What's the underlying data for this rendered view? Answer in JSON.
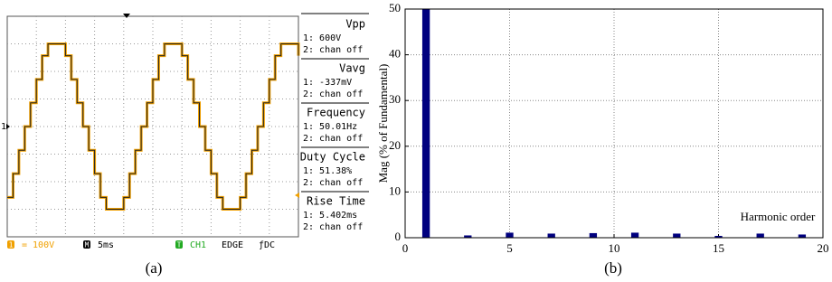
{
  "chart_data": [
    {
      "type": "line",
      "caption": "(a)",
      "step": true,
      "color": "#f0a000",
      "grid": true,
      "channel_marker": "1",
      "x": [
        0,
        1,
        2,
        3,
        4,
        5,
        6,
        7,
        8,
        9,
        10,
        11,
        12,
        13,
        14,
        15,
        16,
        17,
        18,
        19,
        20,
        21,
        22,
        23,
        24,
        25,
        26,
        27,
        28,
        29,
        30,
        31,
        32,
        33,
        34,
        35,
        36,
        37,
        38,
        39,
        40,
        41,
        42,
        43,
        44,
        45,
        46,
        47,
        48,
        49,
        50
      ],
      "values": [
        -257,
        -171,
        -86,
        0,
        86,
        171,
        257,
        300,
        300,
        300,
        257,
        171,
        86,
        0,
        -86,
        -171,
        -257,
        -300,
        -300,
        -300,
        -257,
        -171,
        -86,
        0,
        86,
        171,
        257,
        300,
        300,
        300,
        257,
        171,
        86,
        0,
        -86,
        -171,
        -257,
        -300,
        -300,
        -300,
        -257,
        -171,
        -86,
        0,
        86,
        171,
        257,
        300,
        300,
        300,
        257
      ],
      "xlim": [
        0,
        50
      ],
      "ylim": [
        -400,
        400
      ],
      "measurements": [
        {
          "name": "Vpp",
          "ch1": "1: 600V",
          "ch2": "2: chan off"
        },
        {
          "name": "Vavg",
          "ch1": "1: -337mV",
          "ch2": "2: chan off"
        },
        {
          "name": "Frequency",
          "ch1": "1: 50.01Hz",
          "ch2": "2: chan off"
        },
        {
          "name": "Duty Cycle",
          "ch1": "1: 51.38%",
          "ch2": "2: chan off"
        },
        {
          "name": "Rise Time",
          "ch1": "1: 5.402ms",
          "ch2": "2: chan off"
        }
      ],
      "status": [
        "1",
        "= 100V",
        "M",
        "5ms",
        "T",
        "CH1",
        "EDGE",
        "ƒDC"
      ]
    },
    {
      "type": "bar",
      "caption": "(b)",
      "ylabel": "Mag (% of Fundamental)",
      "annotation": "Harmonic order",
      "x": [
        1,
        3,
        5,
        7,
        9,
        11,
        13,
        15,
        17,
        19
      ],
      "values": [
        50,
        0.5,
        1.1,
        0.9,
        1.0,
        1.1,
        0.9,
        0.4,
        0.9,
        0.7
      ],
      "color": "#00007f",
      "grid": true,
      "xlim": [
        0,
        20
      ],
      "xticks": [
        0,
        5,
        10,
        15,
        20
      ],
      "ylim": [
        0,
        50
      ],
      "yticks": [
        0,
        10,
        20,
        30,
        40,
        50
      ]
    }
  ]
}
